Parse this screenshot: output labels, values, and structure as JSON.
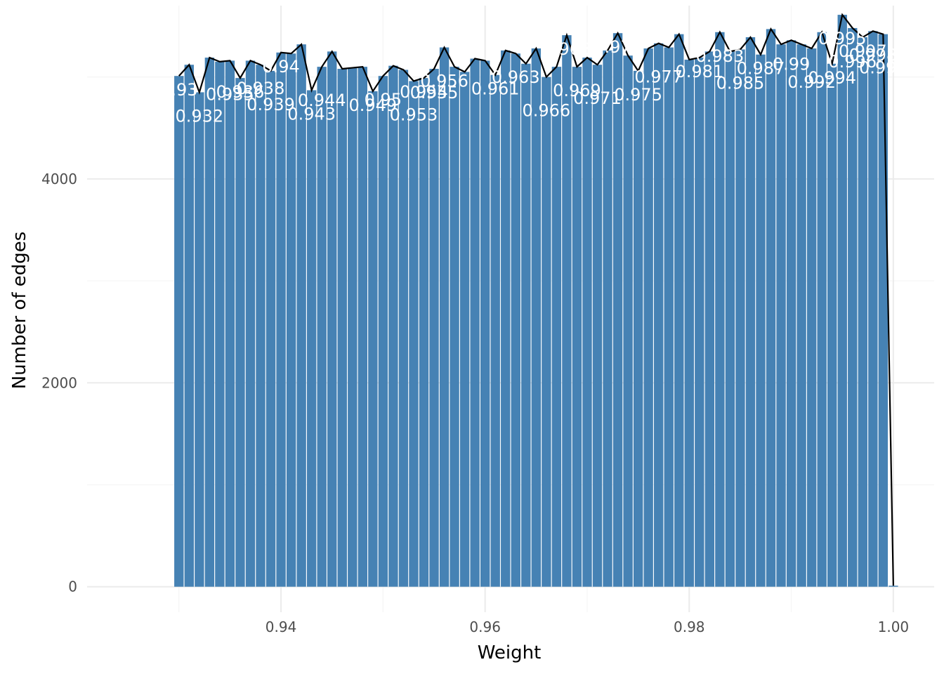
{
  "chart_data": {
    "type": "bar",
    "title": "",
    "xlabel": "Weight",
    "ylabel": "Number of edges",
    "xlim": [
      0.921,
      1.004
    ],
    "ylim": [
      -250,
      5700
    ],
    "x_ticks": [
      0.94,
      0.96,
      0.98,
      1.0
    ],
    "x_tick_labels": [
      "0.94",
      "0.96",
      "0.98",
      "1.00"
    ],
    "y_ticks": [
      0,
      2000,
      4000
    ],
    "y_tick_labels": [
      "0",
      "2000",
      "4000"
    ],
    "grid": true,
    "legend": "none",
    "bar_width": 0.00092,
    "overlay": "line through bar tops",
    "x": [
      0.93,
      0.931,
      0.932,
      0.933,
      0.934,
      0.935,
      0.936,
      0.937,
      0.938,
      0.939,
      0.94,
      0.941,
      0.942,
      0.943,
      0.944,
      0.945,
      0.946,
      0.947,
      0.948,
      0.949,
      0.95,
      0.951,
      0.952,
      0.953,
      0.954,
      0.955,
      0.956,
      0.957,
      0.958,
      0.959,
      0.96,
      0.961,
      0.962,
      0.963,
      0.964,
      0.965,
      0.966,
      0.967,
      0.968,
      0.969,
      0.97,
      0.971,
      0.972,
      0.973,
      0.974,
      0.975,
      0.976,
      0.977,
      0.978,
      0.979,
      0.98,
      0.981,
      0.982,
      0.983,
      0.984,
      0.985,
      0.986,
      0.987,
      0.988,
      0.989,
      0.99,
      0.991,
      0.992,
      0.993,
      0.994,
      0.995,
      0.996,
      0.997,
      0.998,
      0.999,
      1.0
    ],
    "values": [
      5010,
      5120,
      4850,
      5190,
      5150,
      5160,
      4990,
      5160,
      5120,
      5060,
      5240,
      5230,
      5320,
      4870,
      5100,
      5250,
      5080,
      5090,
      5100,
      4860,
      5010,
      5110,
      5070,
      4960,
      4990,
      5080,
      5290,
      5100,
      5050,
      5180,
      5160,
      5020,
      5260,
      5230,
      5130,
      5280,
      5000,
      5100,
      5410,
      5100,
      5190,
      5120,
      5260,
      5430,
      5210,
      5060,
      5280,
      5330,
      5290,
      5420,
      5170,
      5190,
      5250,
      5440,
      5250,
      5270,
      5390,
      5220,
      5470,
      5320,
      5360,
      5320,
      5280,
      5440,
      5130,
      5610,
      5480,
      5390,
      5450,
      5420,
      10
    ],
    "labels": [
      "0.93",
      "0.932",
      "0.935",
      "0.936",
      "0.938",
      "0.939",
      "0.94",
      "0.943",
      "0.944",
      "0.949",
      "0.95",
      "0.953",
      "0.954",
      "0.955",
      "0.956",
      "0.961",
      "0.963",
      "0.966",
      "0.968",
      "0.969",
      "0.971",
      "0.973",
      "0.975",
      "0.977",
      "0.981",
      "0.983",
      "0.985",
      "0.987",
      "0.99",
      "0.992",
      "0.994",
      "0.995",
      "0.996",
      "0.997",
      "0.998",
      "0.999"
    ],
    "colors": {
      "bar": "#4682b4",
      "line": "#000000",
      "grid_major": "#ebebeb",
      "grid_minor": "#f5f5f5",
      "label": "#ffffff"
    }
  }
}
